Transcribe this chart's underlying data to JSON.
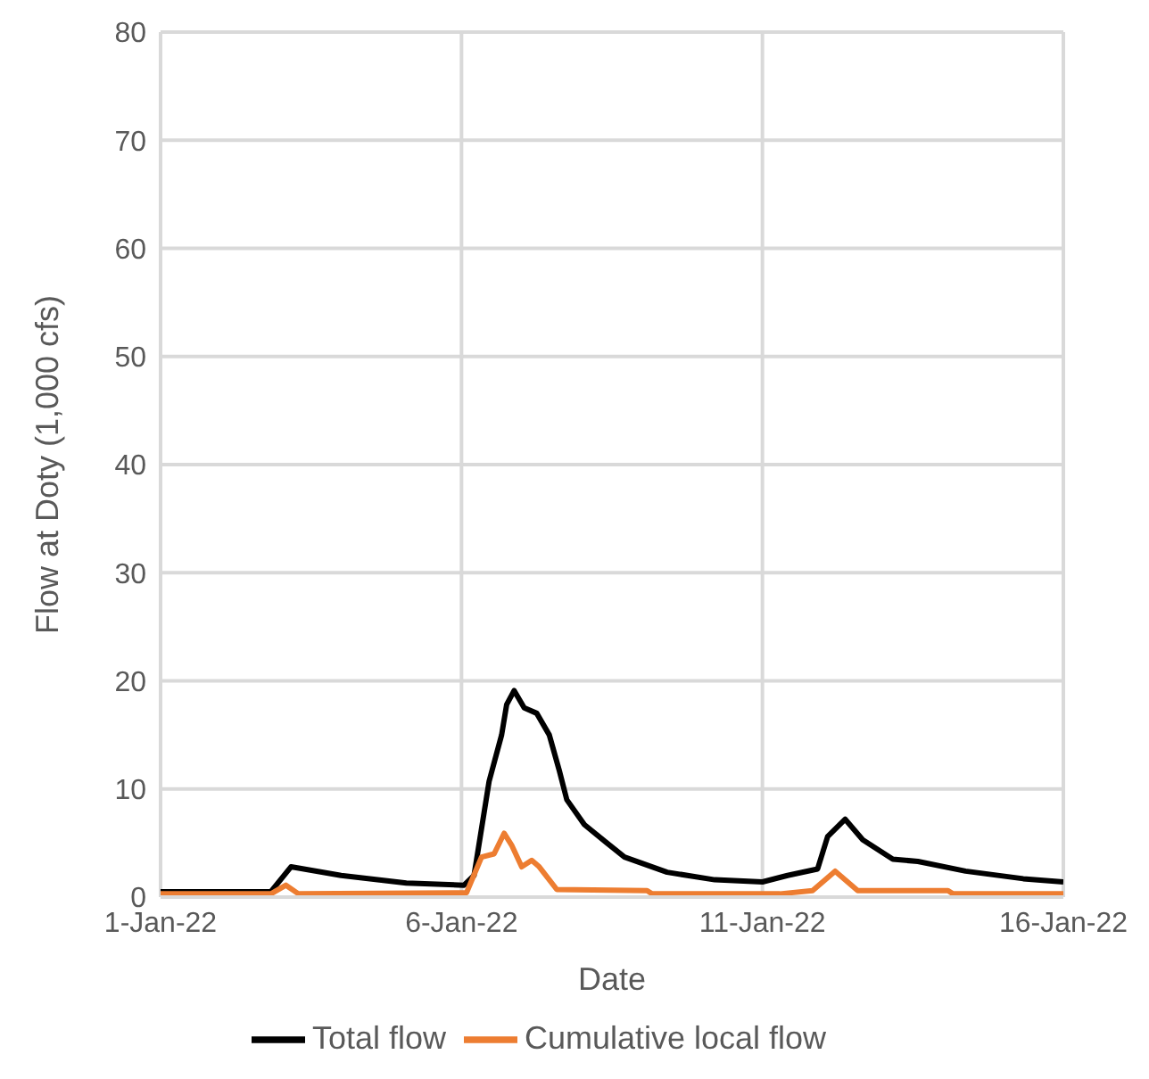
{
  "chart_data": {
    "type": "line",
    "xlabel": "Date",
    "ylabel": "Flow  at Doty (1,000 cfs)",
    "xlim": [
      "--01-01",
      "--01-16"
    ],
    "xticks": [
      {
        "value": "--01-01",
        "label": "1-Jan-22"
      },
      {
        "value": "--01-06",
        "label": "6-Jan-22"
      },
      {
        "value": "--01-11",
        "label": "11-Jan-22"
      },
      {
        "value": "--01-16",
        "label": "16-Jan-22"
      }
    ],
    "ylim": [
      0,
      80
    ],
    "yticks": [
      0,
      10,
      20,
      30,
      40,
      50,
      60,
      70,
      80
    ],
    "grid": true,
    "legend": "bottom",
    "marker": "none",
    "line_style": "solid",
    "series": [
      {
        "name": "Total flow",
        "color": "#000000",
        "x": [
          "--01-01T00:00",
          "--01-02T20:00",
          "--01-03T04:00",
          "--01-04T00:00",
          "--01-05T02:00",
          "--01-06T01:00",
          "--01-06T05:00",
          "--01-06T11:00",
          "--01-06T16:00",
          "--01-06T18:00",
          "--01-06T21:00",
          "--01-07T01:00",
          "--01-07T06:00",
          "--01-07T11:00",
          "--01-07T15:00",
          "--01-07T18:00",
          "--01-08T01:00",
          "--01-08T10:00",
          "--01-08T17:00",
          "--01-09T10:00",
          "--01-10T05:00",
          "--01-11T00:00",
          "--01-11T10:00",
          "--01-11T22:00",
          "--01-12T02:00",
          "--01-12T09:00",
          "--01-12T16:00",
          "--01-13T04:00",
          "--01-13T14:00",
          "--01-14T09:00",
          "--01-15T08:00",
          "--01-16T00:00"
        ],
        "values": [
          0.5,
          0.5,
          2.8,
          2.0,
          1.3,
          1.1,
          2.0,
          10.7,
          15,
          17.8,
          19.1,
          17.5,
          17,
          15,
          11.7,
          9,
          6.7,
          5,
          3.7,
          2.3,
          1.6,
          1.4,
          2.0,
          2.6,
          5.6,
          7.2,
          5.3,
          3.5,
          3.3,
          2.4,
          1.7,
          1.4
        ]
      },
      {
        "name": "Cumulative local flow",
        "color": "#ed7d31",
        "x": [
          "--01-01T00:00",
          "--01-02T20:00",
          "--01-03T02:00",
          "--01-03T07:00",
          "--01-06T02:00",
          "--01-06T08:00",
          "--01-06T13:00",
          "--01-06T17:00",
          "--01-06T20:00",
          "--01-07T00:00",
          "--01-07T04:00",
          "--01-07T07:00",
          "--01-07T14:00",
          "--01-09T02:00",
          "--01-09T04:00",
          "--01-11T07:00",
          "--01-11T20:00",
          "--01-12T05:00",
          "--01-12T14:00",
          "--01-14T02:00",
          "--01-14T04:00",
          "--01-16T00:00"
        ],
        "values": [
          0.3,
          0.3,
          1.1,
          0.3,
          0.4,
          3.7,
          4.0,
          5.9,
          4.8,
          2.8,
          3.4,
          2.8,
          0.7,
          0.6,
          0.3,
          0.3,
          0.6,
          2.4,
          0.6,
          0.6,
          0.3,
          0.3
        ]
      }
    ]
  }
}
